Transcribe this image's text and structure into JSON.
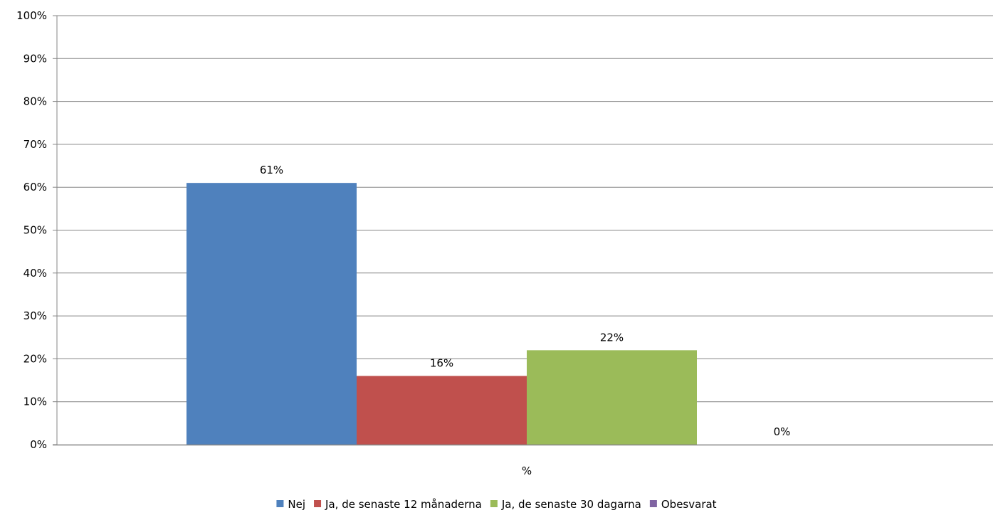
{
  "chart_data": {
    "type": "bar",
    "categories": [
      "%"
    ],
    "series": [
      {
        "name": "Nej",
        "values": [
          61
        ],
        "label": "61%",
        "color": "#4F81BD"
      },
      {
        "name": "Ja, de senaste 12 månaderna",
        "values": [
          16
        ],
        "label": "16%",
        "color": "#C0504D"
      },
      {
        "name": "Ja, de senaste 30 dagarna",
        "values": [
          22
        ],
        "label": "22%",
        "color": "#9BBB59"
      },
      {
        "name": "Obesvarat",
        "values": [
          0
        ],
        "label": "0%",
        "color": "#8064A2"
      }
    ],
    "ylim": [
      0,
      100
    ],
    "yticks": [
      "0%",
      "10%",
      "20%",
      "30%",
      "40%",
      "50%",
      "60%",
      "70%",
      "80%",
      "90%",
      "100%"
    ],
    "grid": true,
    "legend_position": "bottom"
  }
}
